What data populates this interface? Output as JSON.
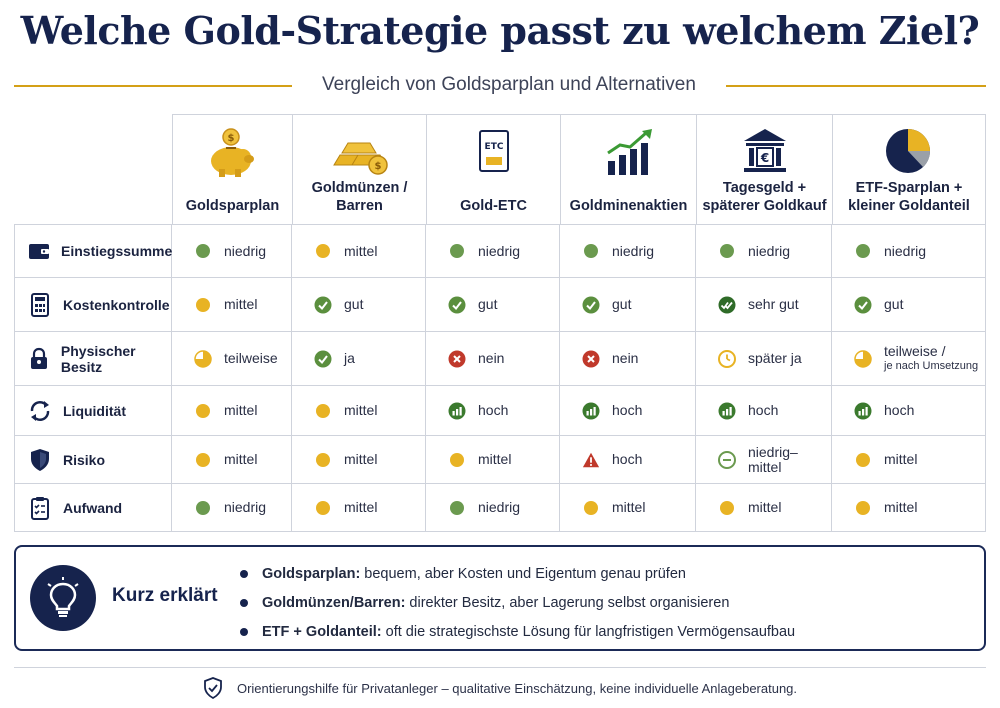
{
  "title": "Welche Gold-Strategie passt zu welchem Ziel?",
  "subtitle": "Vergleich von Goldsparplan und Alternativen",
  "columns": [
    {
      "label": "Goldsparplan",
      "icon": "piggy-bank-icon"
    },
    {
      "label": "Goldmünzen / Barren",
      "icon": "gold-bars-icon"
    },
    {
      "label": "Gold-ETC",
      "icon": "etc-document-icon",
      "icon_text": "ETC"
    },
    {
      "label": "Goldminenaktien",
      "icon": "rising-bar-chart-icon"
    },
    {
      "label": "Tagesgeld + späterer Goldkauf",
      "icon": "bank-euro-icon"
    },
    {
      "label": "ETF-Sparplan + kleiner Goldanteil",
      "icon": "pie-chart-icon"
    }
  ],
  "rows": [
    {
      "label": "Einstiegssumme",
      "icon": "wallet-icon",
      "cells": [
        {
          "text": "niedrig",
          "status": "green-dot"
        },
        {
          "text": "mittel",
          "status": "yellow-dot"
        },
        {
          "text": "niedrig",
          "status": "green-dot"
        },
        {
          "text": "niedrig",
          "status": "green-dot"
        },
        {
          "text": "niedrig",
          "status": "green-dot"
        },
        {
          "text": "niedrig",
          "status": "green-dot"
        }
      ]
    },
    {
      "label": "Kostenkontrolle",
      "icon": "calculator-icon",
      "cells": [
        {
          "text": "mittel",
          "status": "yellow-dot"
        },
        {
          "text": "gut",
          "status": "check"
        },
        {
          "text": "gut",
          "status": "check"
        },
        {
          "text": "gut",
          "status": "check"
        },
        {
          "text": "sehr gut",
          "status": "double-check"
        },
        {
          "text": "gut",
          "status": "check"
        }
      ]
    },
    {
      "label": "Physischer Besitz",
      "icon": "lock-icon",
      "cells": [
        {
          "text": "teilweise",
          "status": "partial"
        },
        {
          "text": "ja",
          "status": "check"
        },
        {
          "text": "nein",
          "status": "cross"
        },
        {
          "text": "nein",
          "status": "cross"
        },
        {
          "text": "später ja",
          "status": "clock"
        },
        {
          "text": "teilweise /",
          "note": "je nach Umsetzung",
          "status": "partial"
        }
      ]
    },
    {
      "label": "Liquidität",
      "icon": "refresh-icon",
      "cells": [
        {
          "text": "mittel",
          "status": "yellow-dot"
        },
        {
          "text": "mittel",
          "status": "yellow-dot"
        },
        {
          "text": "hoch",
          "status": "bars"
        },
        {
          "text": "hoch",
          "status": "bars"
        },
        {
          "text": "hoch",
          "status": "bars"
        },
        {
          "text": "hoch",
          "status": "bars"
        }
      ]
    },
    {
      "label": "Risiko",
      "icon": "shield-icon",
      "cells": [
        {
          "text": "mittel",
          "status": "yellow-dot"
        },
        {
          "text": "mittel",
          "status": "yellow-dot"
        },
        {
          "text": "mittel",
          "status": "yellow-dot"
        },
        {
          "text": "hoch",
          "status": "warning"
        },
        {
          "text": "niedrig–mittel",
          "status": "minus"
        },
        {
          "text": "mittel",
          "status": "yellow-dot"
        }
      ]
    },
    {
      "label": "Aufwand",
      "icon": "checklist-icon",
      "cells": [
        {
          "text": "niedrig",
          "status": "green-dot"
        },
        {
          "text": "mittel",
          "status": "yellow-dot"
        },
        {
          "text": "niedrig",
          "status": "green-dot"
        },
        {
          "text": "mittel",
          "status": "yellow-dot"
        },
        {
          "text": "mittel",
          "status": "yellow-dot"
        },
        {
          "text": "mittel",
          "status": "yellow-dot"
        }
      ]
    }
  ],
  "summary": {
    "title": "Kurz erklärt",
    "icon": "lightbulb-icon",
    "items": [
      {
        "bold": "Goldsparplan:",
        "text": "bequem, aber Kosten und Eigentum genau prüfen"
      },
      {
        "bold": "Goldmünzen/Barren:",
        "text": "direkter Besitz, aber Lagerung selbst organisieren"
      },
      {
        "bold": "ETF + Goldanteil:",
        "text": "oft die strategischste Lösung für langfristigen Vermögensaufbau"
      }
    ]
  },
  "footer": {
    "icon": "shield-check-icon",
    "text": "Orientierungshilfe für Privatanleger – qualitative Einschätzung, keine individuelle Anlageberatung."
  },
  "colors": {
    "navy": "#16234d",
    "gold": "#d4a017",
    "green": "#6b9a4f",
    "yellow": "#e8b324",
    "red": "#c0392b",
    "darkgreen": "#3b7a2e"
  }
}
